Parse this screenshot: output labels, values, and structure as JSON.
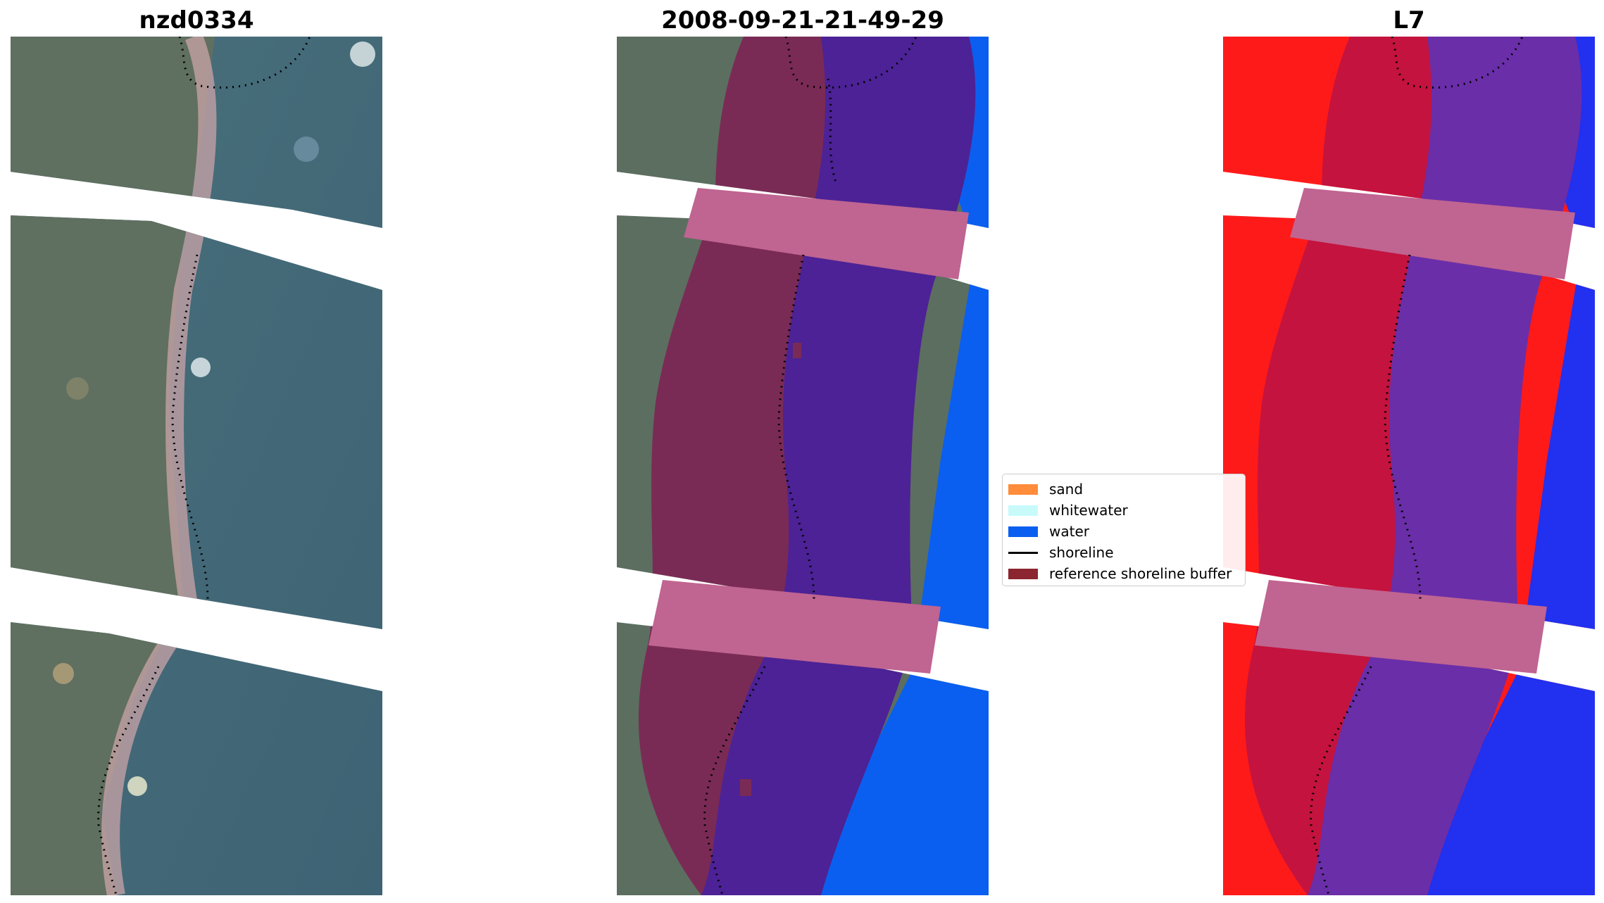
{
  "titles": {
    "left": "nzd0334",
    "middle": "2008-09-21-21-49-29",
    "right": "L7"
  },
  "legend": [
    {
      "label": "sand",
      "color": "#ff8c3a",
      "kind": "patch"
    },
    {
      "label": "whitewater",
      "color": "#c8fafa",
      "kind": "patch"
    },
    {
      "label": "water",
      "color": "#0a5ff0",
      "kind": "patch"
    },
    {
      "label": "shoreline",
      "color": "#000000",
      "kind": "line"
    },
    {
      "label": "reference shoreline buffer",
      "color": "#8b2530",
      "kind": "patch"
    }
  ],
  "colors": {
    "rgb_land": "#5c6d5f",
    "rgb_water": "#3f6476",
    "buffer": "#7a2b55",
    "buffer_band": "#c06491",
    "water_class": "#0a5ff0",
    "classified_water": "#4c2296",
    "mndwi_land": "#ff1a1a",
    "mndwi_water": "#6a2ea8",
    "mndwi_buffer": "#c4133e",
    "mndwi_blue": "#2230ef"
  }
}
